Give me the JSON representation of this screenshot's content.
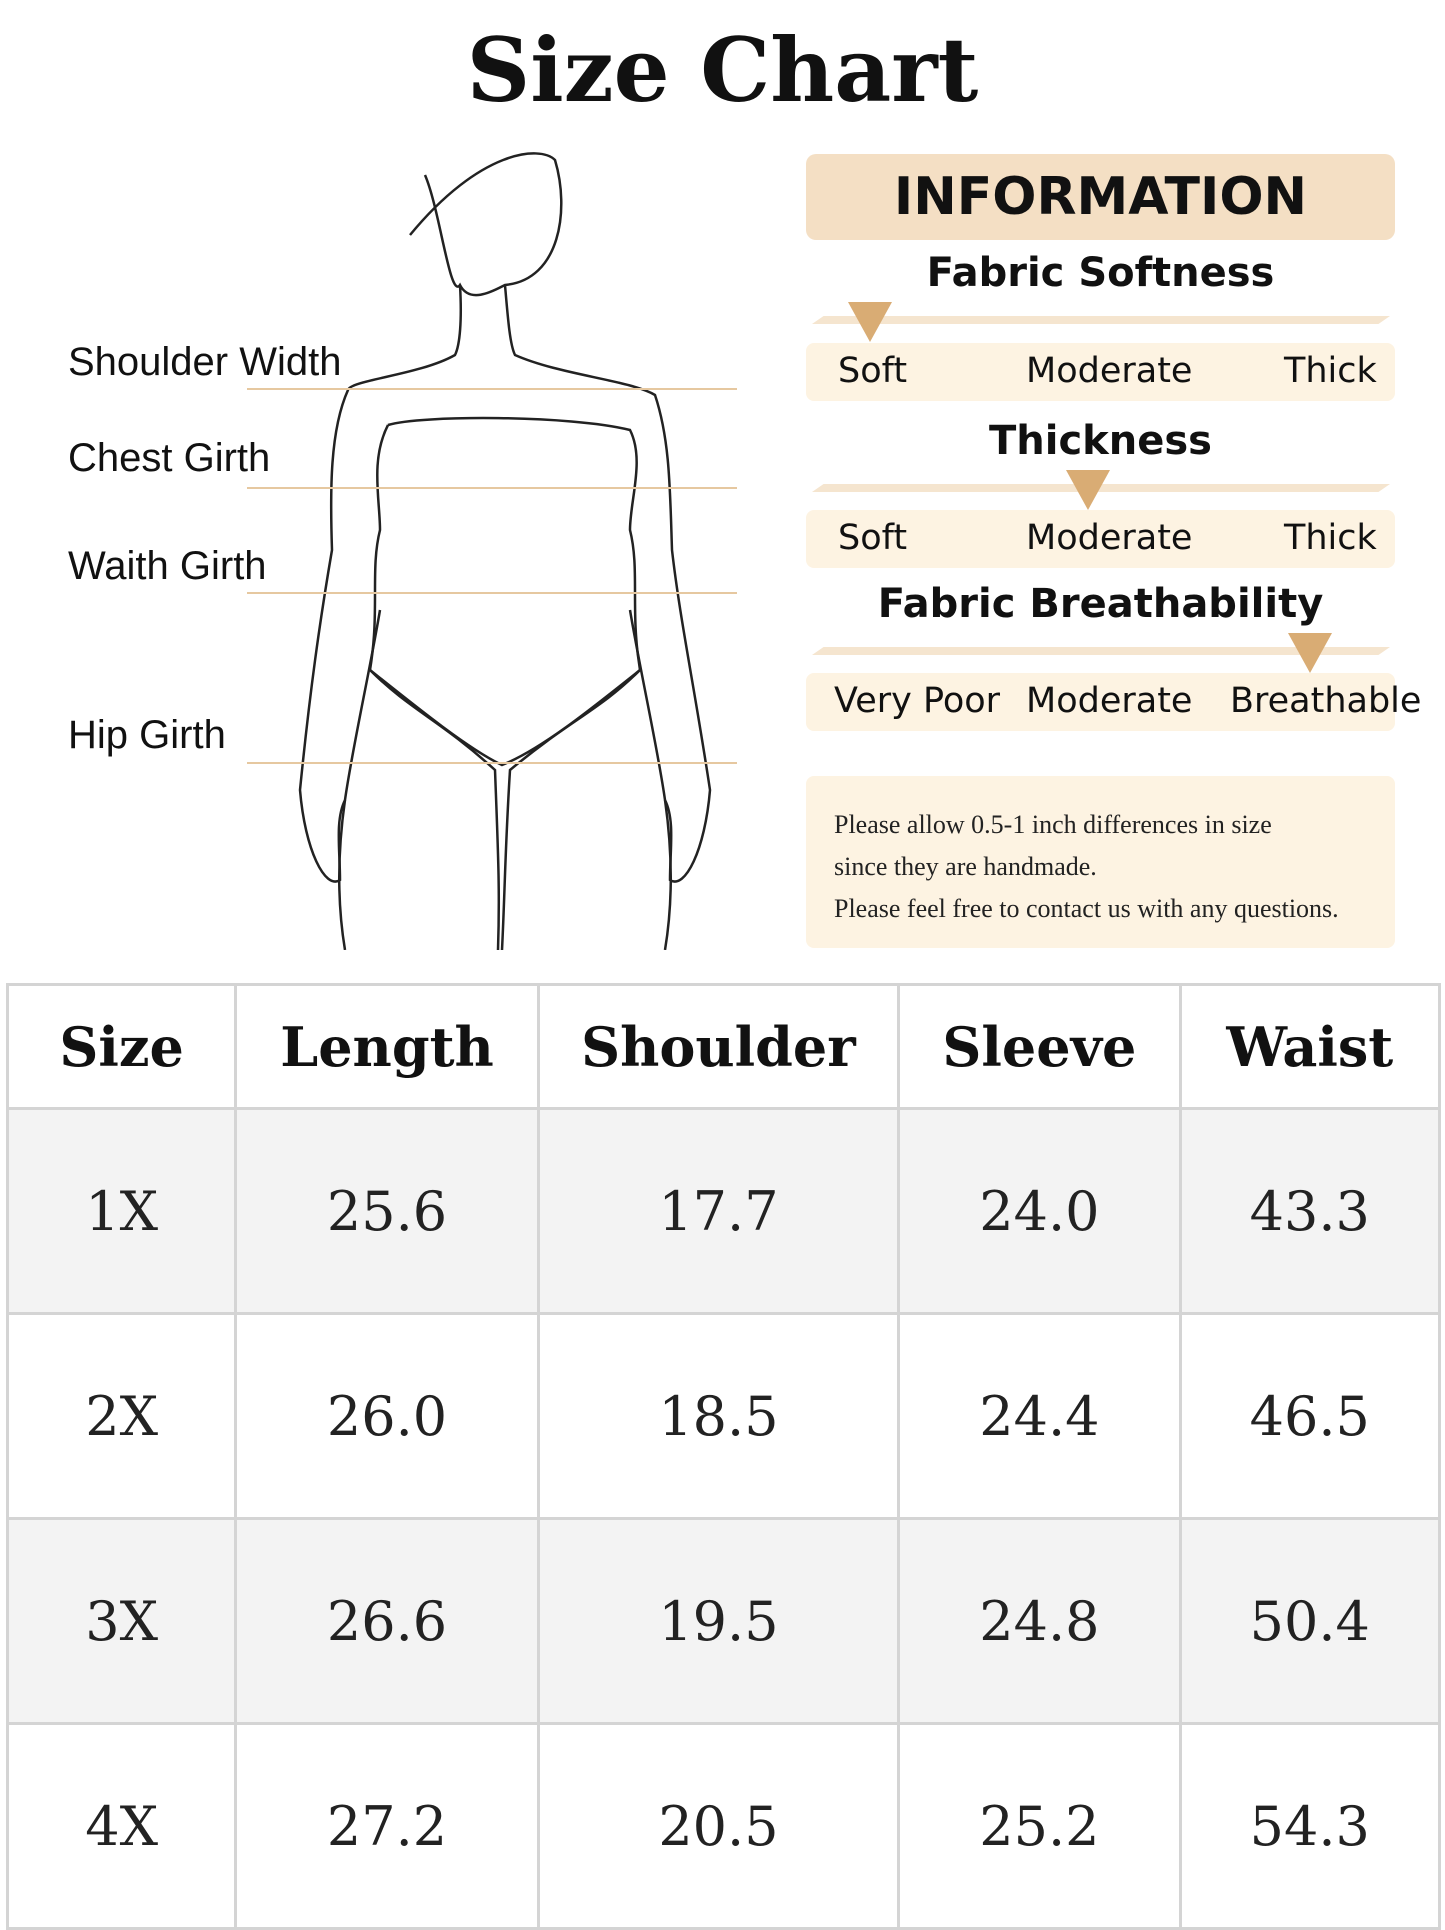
{
  "title": "Size Chart",
  "measurements": [
    "Shoulder Width",
    "Chest Girth",
    "Waith Girth",
    "Hip Girth"
  ],
  "info": {
    "header": "INFORMATION",
    "scales": [
      {
        "title": "Fabric Softness",
        "labels": [
          "Soft",
          "Moderate",
          "Thick"
        ],
        "selected": "Soft"
      },
      {
        "title": "Thickness",
        "labels": [
          "Soft",
          "Moderate",
          "Thick"
        ],
        "selected": "Moderate"
      },
      {
        "title": "Fabric Breathability",
        "labels": [
          "Very Poor",
          "Moderate",
          "Breathable"
        ],
        "selected": "Breathable"
      }
    ],
    "note": [
      "Please allow 0.5-1 inch differences in size",
      "since they are handmade.",
      "Please feel free to contact us with any questions."
    ]
  },
  "colors": {
    "accent": "#d9ac74",
    "header_bg": "#f4dfc4",
    "panel_bg": "#fdf3e2",
    "line": "#e6c8a0"
  },
  "table": {
    "headers": [
      "Size",
      "Length",
      "Shoulder",
      "Sleeve",
      "Waist"
    ],
    "rows": [
      [
        "1X",
        "25.6",
        "17.7",
        "24.0",
        "43.3"
      ],
      [
        "2X",
        "26.0",
        "18.5",
        "24.4",
        "46.5"
      ],
      [
        "3X",
        "26.6",
        "19.5",
        "24.8",
        "50.4"
      ],
      [
        "4X",
        "27.2",
        "20.5",
        "25.2",
        "54.3"
      ]
    ]
  }
}
